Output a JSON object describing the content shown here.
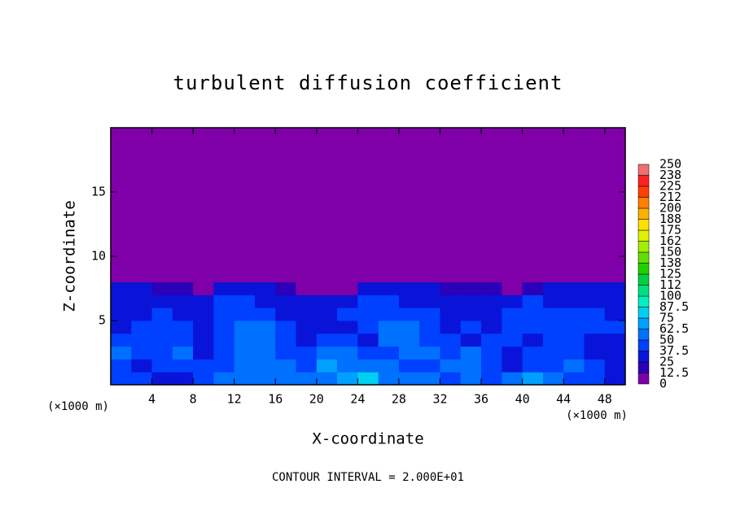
{
  "chart_data": {
    "type": "heatmap",
    "title": "turbulent diffusion coefficient",
    "x_label": "X-coordinate",
    "y_label": "Z-coordinate",
    "x_unit": "(×1000 m)",
    "y_unit": "(×1000 m)",
    "footer": "CONTOUR INTERVAL = 2.000E+01",
    "xlim": [
      0,
      50
    ],
    "ylim": [
      0,
      20
    ],
    "xticks": [
      4,
      8,
      12,
      16,
      20,
      24,
      28,
      32,
      36,
      40,
      44,
      48
    ],
    "yticks": [
      5,
      10,
      15
    ],
    "xbins": [
      0,
      2,
      4,
      6,
      8,
      10,
      12,
      14,
      16,
      18,
      20,
      22,
      24,
      26,
      28,
      30,
      32,
      34,
      36,
      38,
      40,
      42,
      44,
      46,
      48,
      50
    ],
    "ybins": [
      0,
      1,
      2,
      3,
      4,
      5,
      6,
      7,
      8,
      20
    ],
    "z": [
      [
        45,
        40,
        30,
        35,
        45,
        50,
        50,
        55,
        60,
        55,
        60,
        70,
        80,
        60,
        55,
        50,
        45,
        50,
        40,
        55,
        65,
        50,
        45,
        40,
        35
      ],
      [
        40,
        35,
        40,
        45,
        40,
        45,
        55,
        60,
        55,
        45,
        65,
        60,
        60,
        50,
        45,
        40,
        50,
        55,
        40,
        35,
        45,
        40,
        50,
        40,
        35
      ],
      [
        50,
        45,
        40,
        50,
        35,
        40,
        55,
        60,
        45,
        40,
        50,
        60,
        45,
        45,
        50,
        55,
        45,
        50,
        40,
        35,
        40,
        45,
        40,
        35,
        30
      ],
      [
        40,
        45,
        45,
        40,
        30,
        40,
        50,
        60,
        45,
        35,
        40,
        45,
        35,
        50,
        55,
        45,
        40,
        35,
        45,
        40,
        35,
        40,
        45,
        35,
        35
      ],
      [
        35,
        40,
        45,
        40,
        30,
        45,
        55,
        55,
        40,
        35,
        30,
        35,
        40,
        55,
        50,
        40,
        35,
        40,
        35,
        45,
        40,
        40,
        40,
        45,
        40
      ],
      [
        30,
        35,
        40,
        35,
        30,
        45,
        40,
        40,
        35,
        35,
        30,
        40,
        45,
        45,
        45,
        40,
        35,
        35,
        30,
        40,
        45,
        40,
        45,
        40,
        35
      ],
      [
        30,
        30,
        35,
        30,
        25,
        40,
        40,
        35,
        30,
        25,
        30,
        35,
        40,
        40,
        35,
        35,
        35,
        30,
        30,
        25,
        40,
        35,
        35,
        35,
        30
      ],
      [
        25,
        25,
        20,
        15,
        0,
        25,
        30,
        25,
        20,
        5,
        5,
        10,
        25,
        30,
        25,
        25,
        20,
        20,
        20,
        0,
        15,
        30,
        25,
        25,
        25
      ],
      [
        0,
        0,
        0,
        0,
        0,
        0,
        0,
        0,
        0,
        0,
        0,
        0,
        0,
        0,
        0,
        0,
        0,
        0,
        0,
        0,
        0,
        0,
        0,
        0,
        0
      ]
    ],
    "levels": [
      0,
      12.5,
      25,
      37.5,
      50,
      62.5,
      75,
      87.5,
      100,
      {
        "value": 112.5,
        "label": "112"
      },
      125,
      {
        "value": 137.5,
        "label": "138"
      },
      150,
      {
        "value": 162.5,
        "label": "162"
      },
      175,
      {
        "value": 187.5,
        "label": "188"
      },
      200,
      {
        "value": 212.5,
        "label": "212"
      },
      225,
      {
        "value": 237.5,
        "label": "238"
      },
      250
    ],
    "colors": [
      "#7f00a8",
      "#2a00b8",
      "#0a14d8",
      "#0040ff",
      "#0070ff",
      "#00a0ff",
      "#00d0f0",
      "#00f0c0",
      "#00e080",
      "#00d040",
      "#20d000",
      "#60e000",
      "#a0f000",
      "#e0f000",
      "#ffe000",
      "#ffb000",
      "#ff8000",
      "#ff4000",
      "#ff2020",
      "#f07070"
    ]
  }
}
